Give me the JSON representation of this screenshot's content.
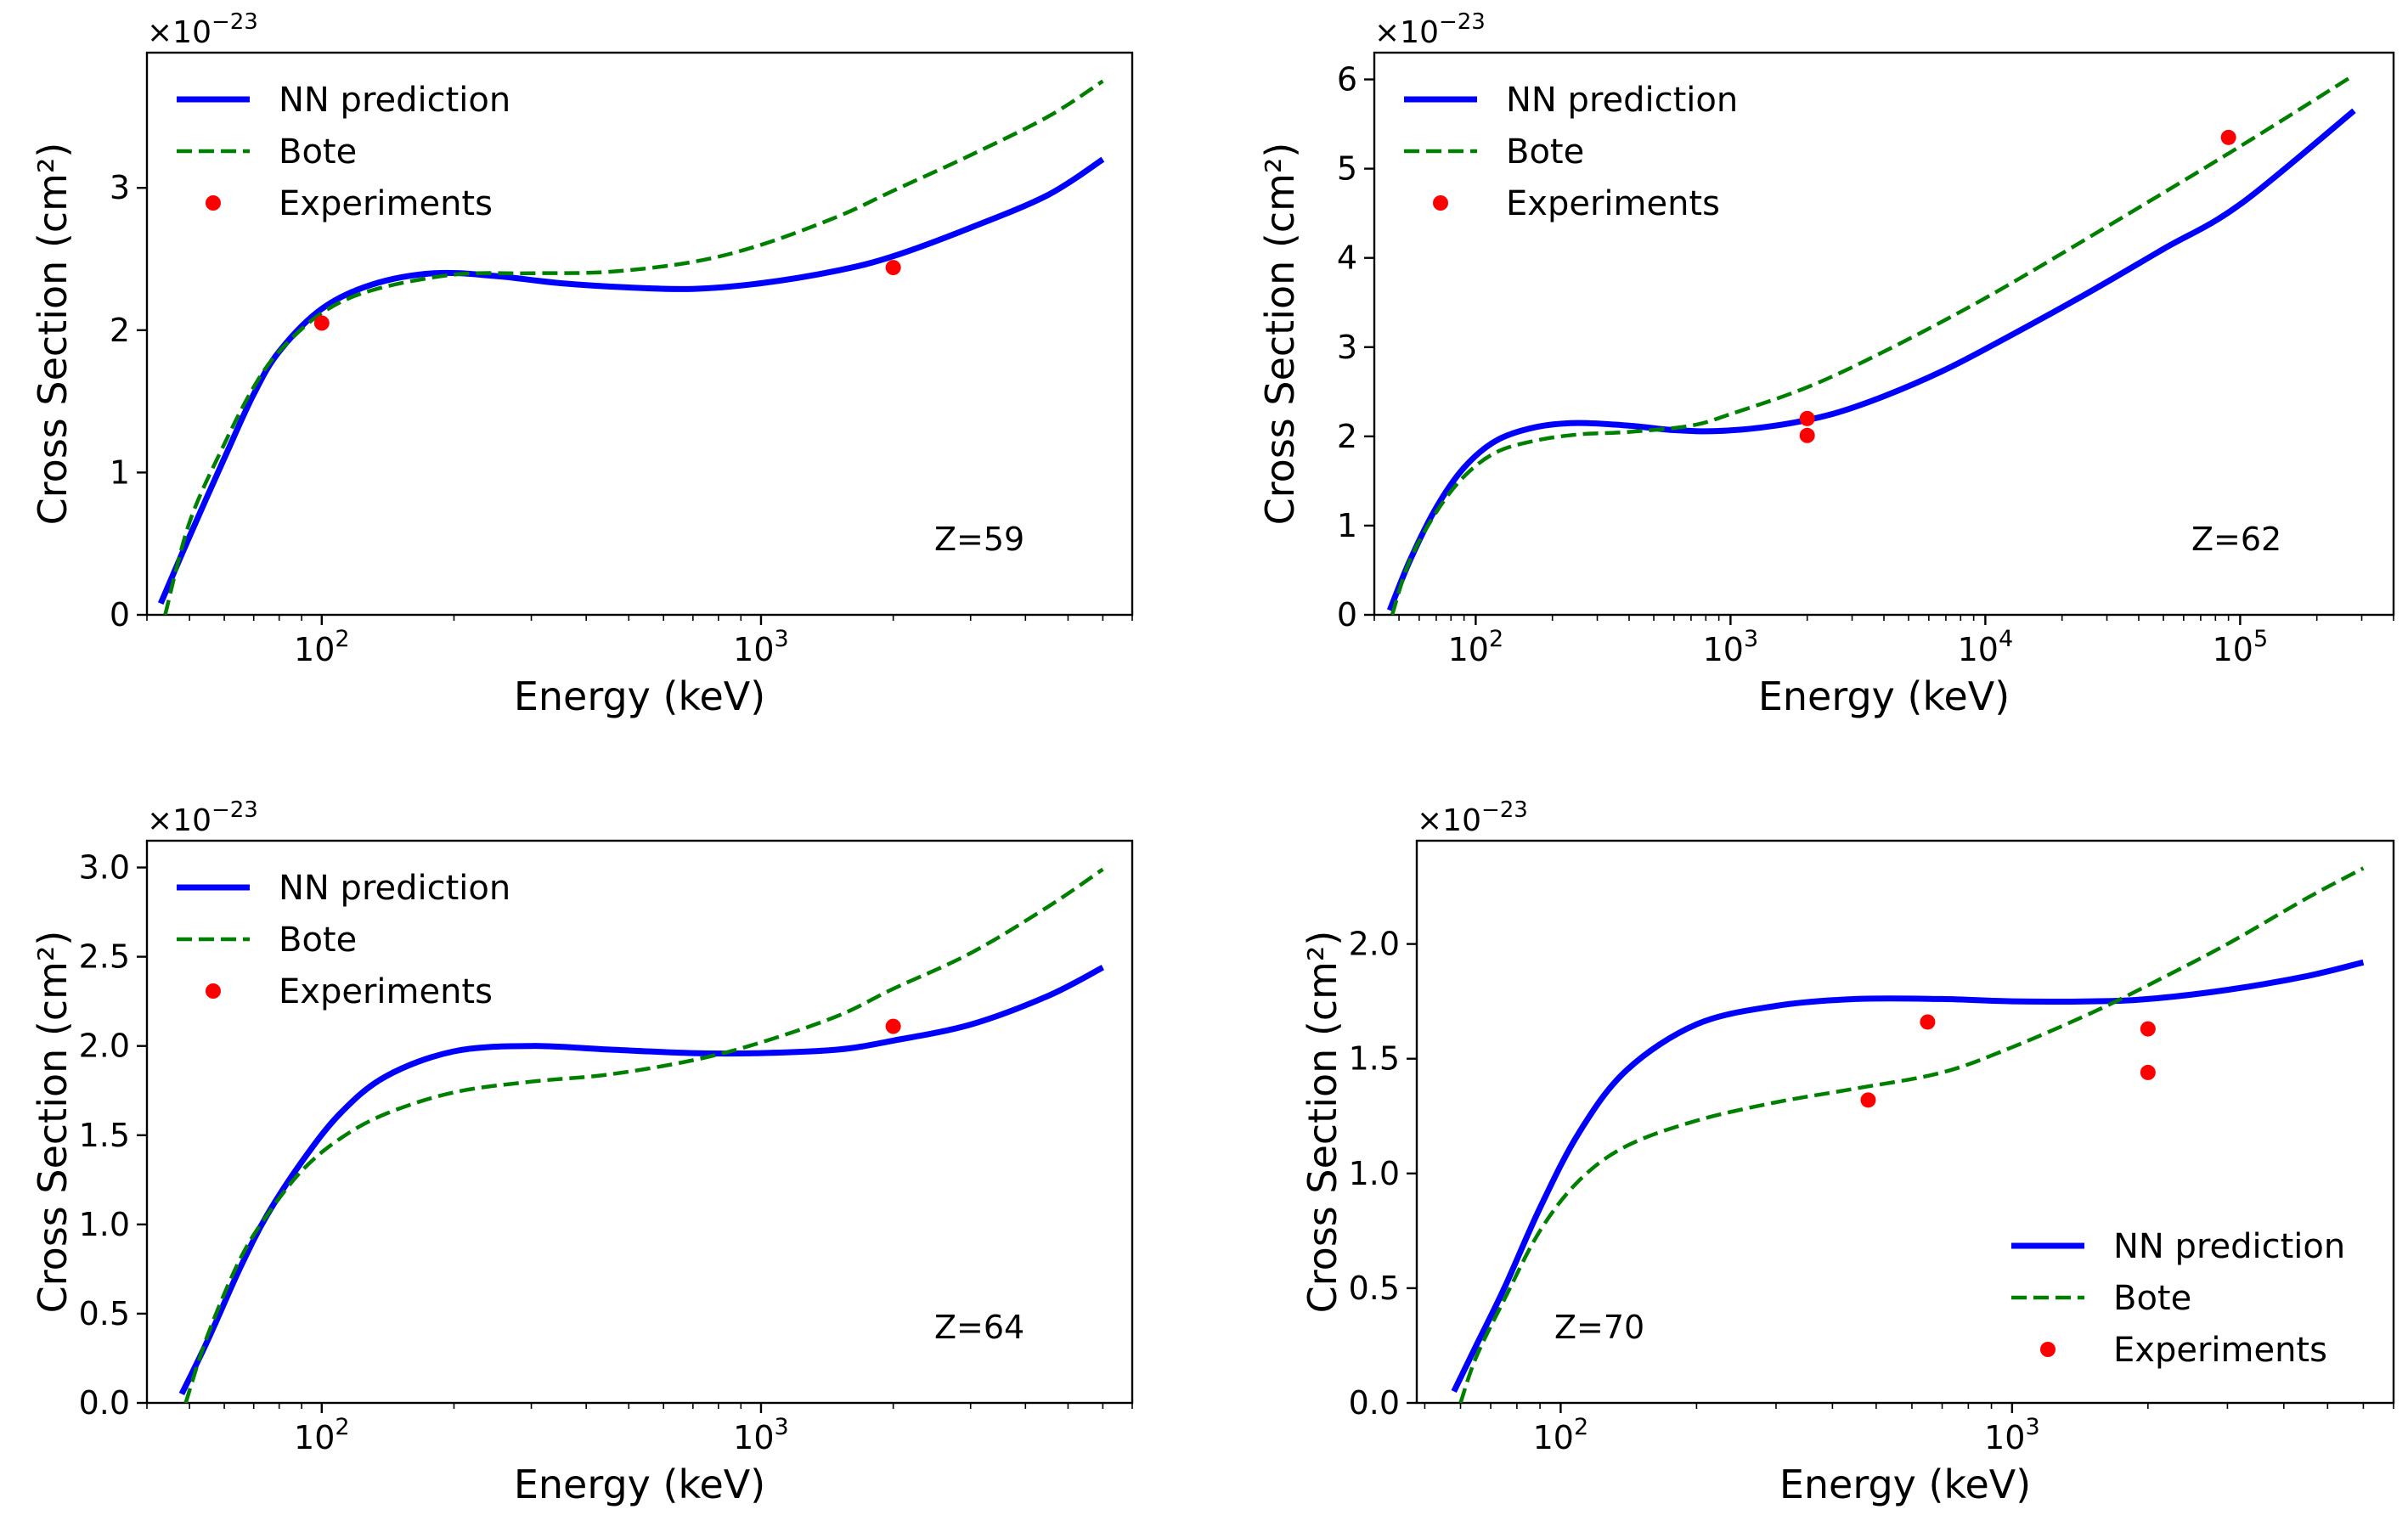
{
  "chart_data": [
    {
      "type": "line",
      "panel": "top-left",
      "annotation": "Z=59",
      "xlabel": "Energy (keV)",
      "ylabel": "Cross Section (cm²)",
      "multiplier_label": "×10⁻²³",
      "xscale": "log",
      "xlim": [
        40,
        7000
      ],
      "ylim": [
        0,
        3.95
      ],
      "yticks": [
        0,
        1,
        2,
        3
      ],
      "yticklabels": [
        "0",
        "1",
        "2",
        "3"
      ],
      "xticks": [
        100,
        1000
      ],
      "xticklabels": [
        "10²",
        "10³"
      ],
      "legend_location": "upper-left",
      "series": [
        {
          "name": "NN prediction",
          "style": "solid",
          "color": "#0000ff",
          "x": [
            43,
            50,
            60,
            70,
            80,
            100,
            130,
            180,
            250,
            350,
            500,
            700,
            1000,
            1500,
            2000,
            3000,
            4500,
            6000
          ],
          "y": [
            0.08,
            0.55,
            1.1,
            1.55,
            1.85,
            2.15,
            2.32,
            2.4,
            2.38,
            2.33,
            2.3,
            2.29,
            2.33,
            2.42,
            2.52,
            2.72,
            2.95,
            3.2
          ]
        },
        {
          "name": "Bote",
          "style": "dashed",
          "color": "#008000",
          "x": [
            44,
            50,
            60,
            70,
            80,
            100,
            130,
            200,
            300,
            450,
            700,
            1000,
            1500,
            2000,
            3000,
            4500,
            6000
          ],
          "y": [
            0.0,
            0.65,
            1.2,
            1.6,
            1.85,
            2.12,
            2.28,
            2.39,
            2.4,
            2.41,
            2.48,
            2.6,
            2.8,
            2.98,
            3.23,
            3.5,
            3.75
          ]
        },
        {
          "name": "Experiments",
          "style": "points",
          "color": "#ff0000",
          "x": [
            100,
            2000
          ],
          "y": [
            2.05,
            2.44
          ]
        }
      ]
    },
    {
      "type": "line",
      "panel": "top-right",
      "annotation": "Z=62",
      "xlabel": "Energy (keV)",
      "ylabel": "Cross Section (cm²)",
      "multiplier_label": "×10⁻²³",
      "xscale": "log",
      "xlim": [
        40,
        400000
      ],
      "ylim": [
        0,
        6.3
      ],
      "yticks": [
        0,
        1,
        2,
        3,
        4,
        5,
        6
      ],
      "yticklabels": [
        "0",
        "1",
        "2",
        "3",
        "4",
        "5",
        "6"
      ],
      "xticks": [
        100,
        1000,
        10000,
        100000
      ],
      "xticklabels": [
        "10²",
        "10³",
        "10⁴",
        "10⁵"
      ],
      "legend_location": "upper-left",
      "series": [
        {
          "name": "NN prediction",
          "style": "solid",
          "color": "#0000ff",
          "x": [
            46,
            55,
            70,
            90,
            120,
            170,
            250,
            400,
            600,
            900,
            1500,
            2500,
            4000,
            7000,
            12000,
            25000,
            50000,
            100000,
            280000
          ],
          "y": [
            0.05,
            0.6,
            1.2,
            1.65,
            1.95,
            2.1,
            2.15,
            2.12,
            2.07,
            2.06,
            2.12,
            2.25,
            2.45,
            2.75,
            3.1,
            3.6,
            4.1,
            4.6,
            5.65
          ]
        },
        {
          "name": "Bote",
          "style": "dashed",
          "color": "#008000",
          "x": [
            47,
            55,
            70,
            90,
            120,
            170,
            250,
            400,
            700,
            1000,
            2000,
            4000,
            10000,
            30000,
            100000,
            280000
          ],
          "y": [
            0.0,
            0.6,
            1.15,
            1.55,
            1.82,
            1.95,
            2.02,
            2.05,
            2.12,
            2.25,
            2.55,
            2.95,
            3.55,
            4.35,
            5.25,
            6.05
          ]
        },
        {
          "name": "Experiments",
          "style": "points",
          "color": "#ff0000",
          "x": [
            2000,
            2000,
            90000
          ],
          "y": [
            2.2,
            2.01,
            5.35
          ]
        }
      ]
    },
    {
      "type": "line",
      "panel": "bottom-left",
      "annotation": "Z=64",
      "xlabel": "Energy (keV)",
      "ylabel": "Cross Section (cm²)",
      "multiplier_label": "×10⁻²³",
      "xscale": "log",
      "xlim": [
        40,
        7000
      ],
      "ylim": [
        0,
        3.15
      ],
      "yticks": [
        0,
        0.5,
        1,
        1.5,
        2,
        2.5,
        3
      ],
      "yticklabels": [
        "0.0",
        "0.5",
        "1.0",
        "1.5",
        "2.0",
        "2.5",
        "3.0"
      ],
      "xticks": [
        100,
        1000
      ],
      "xticklabels": [
        "10²",
        "10³"
      ],
      "legend_location": "upper-left",
      "series": [
        {
          "name": "NN prediction",
          "style": "solid",
          "color": "#0000ff",
          "x": [
            48,
            55,
            65,
            75,
            90,
            110,
            140,
            200,
            300,
            450,
            700,
            1000,
            1500,
            2000,
            3000,
            4500,
            6000
          ],
          "y": [
            0.05,
            0.35,
            0.75,
            1.05,
            1.35,
            1.62,
            1.83,
            1.97,
            2.0,
            1.98,
            1.96,
            1.96,
            1.98,
            2.03,
            2.12,
            2.28,
            2.44
          ]
        },
        {
          "name": "Bote",
          "style": "dashed",
          "color": "#008000",
          "x": [
            49,
            55,
            65,
            75,
            90,
            110,
            140,
            200,
            300,
            450,
            700,
            1000,
            1500,
            2000,
            3000,
            4500,
            6000
          ],
          "y": [
            0.0,
            0.38,
            0.8,
            1.05,
            1.3,
            1.48,
            1.62,
            1.74,
            1.8,
            1.84,
            1.92,
            2.02,
            2.17,
            2.32,
            2.52,
            2.78,
            2.99
          ]
        },
        {
          "name": "Experiments",
          "style": "points",
          "color": "#ff0000",
          "x": [
            2000
          ],
          "y": [
            2.11
          ]
        }
      ]
    },
    {
      "type": "line",
      "panel": "bottom-right",
      "annotation": "Z=70",
      "xlabel": "Energy (keV)",
      "ylabel": "Cross Section (cm²)",
      "multiplier_label": "×10⁻²³",
      "xscale": "log",
      "xlim": [
        48,
        7000
      ],
      "ylim": [
        0,
        2.45
      ],
      "yticks": [
        0,
        0.5,
        1,
        1.5,
        2
      ],
      "yticklabels": [
        "0.0",
        "0.5",
        "1.0",
        "1.5",
        "2.0"
      ],
      "xticks": [
        100,
        1000
      ],
      "xticklabels": [
        "10²",
        "10³"
      ],
      "legend_location": "lower-right",
      "series": [
        {
          "name": "NN prediction",
          "style": "solid",
          "color": "#0000ff",
          "x": [
            58,
            65,
            75,
            90,
            110,
            140,
            200,
            300,
            450,
            700,
            1000,
            1500,
            2000,
            3000,
            4500,
            6000
          ],
          "y": [
            0.05,
            0.25,
            0.5,
            0.85,
            1.18,
            1.45,
            1.65,
            1.73,
            1.76,
            1.76,
            1.75,
            1.75,
            1.76,
            1.8,
            1.86,
            1.92
          ]
        },
        {
          "name": "Bote",
          "style": "dashed",
          "color": "#008000",
          "x": [
            60,
            65,
            75,
            90,
            110,
            140,
            200,
            300,
            450,
            700,
            1000,
            1500,
            2000,
            3000,
            4500,
            6000
          ],
          "y": [
            0.0,
            0.2,
            0.45,
            0.75,
            0.97,
            1.12,
            1.23,
            1.31,
            1.37,
            1.44,
            1.55,
            1.7,
            1.82,
            2.0,
            2.2,
            2.33
          ]
        },
        {
          "name": "Experiments",
          "style": "points",
          "color": "#ff0000",
          "x": [
            480,
            650,
            2000,
            2000
          ],
          "y": [
            1.32,
            1.66,
            1.63,
            1.44
          ]
        }
      ]
    }
  ]
}
